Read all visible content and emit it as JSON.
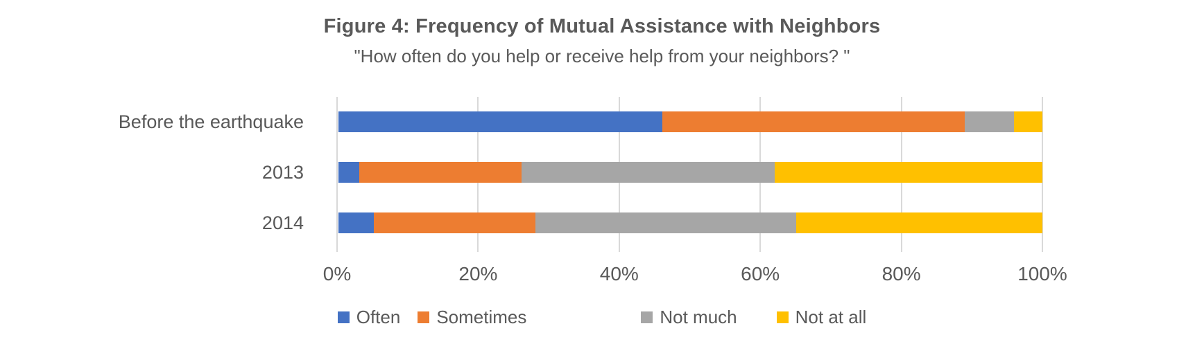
{
  "header": {
    "title": "Figure 4: Frequency of Mutual Assistance with Neighbors",
    "subtitle": "\"How often do you help or receive help from your neighbors? \""
  },
  "colors": {
    "title_text": "#595959",
    "axis_text": "#595959",
    "gridline": "#D9D9D9",
    "background": "#FFFFFF"
  },
  "chart_data": {
    "type": "bar",
    "stacked": true,
    "orientation": "horizontal",
    "title": "Figure 4: Frequency of Mutual Assistance with Neighbors",
    "subtitle": "\"How often do you help or receive help from your neighbors? \"",
    "categories": [
      "Before the earthquake",
      "2013",
      "2014"
    ],
    "series": [
      {
        "name": "Often",
        "color": "#4472C4",
        "values": [
          46,
          3,
          5
        ]
      },
      {
        "name": "Sometimes",
        "color": "#ED7D31",
        "values": [
          43,
          23,
          23
        ]
      },
      {
        "name": "Not much",
        "color": "#A6A6A6",
        "values": [
          7,
          36,
          37
        ]
      },
      {
        "name": "Not at all",
        "color": "#FFC000",
        "values": [
          4,
          38,
          35
        ]
      }
    ],
    "xlabel": "",
    "ylabel": "",
    "xlim": [
      0,
      100
    ],
    "x_ticks": [
      "0%",
      "20%",
      "40%",
      "60%",
      "80%",
      "100%"
    ],
    "grid": true,
    "legend_position": "bottom"
  }
}
